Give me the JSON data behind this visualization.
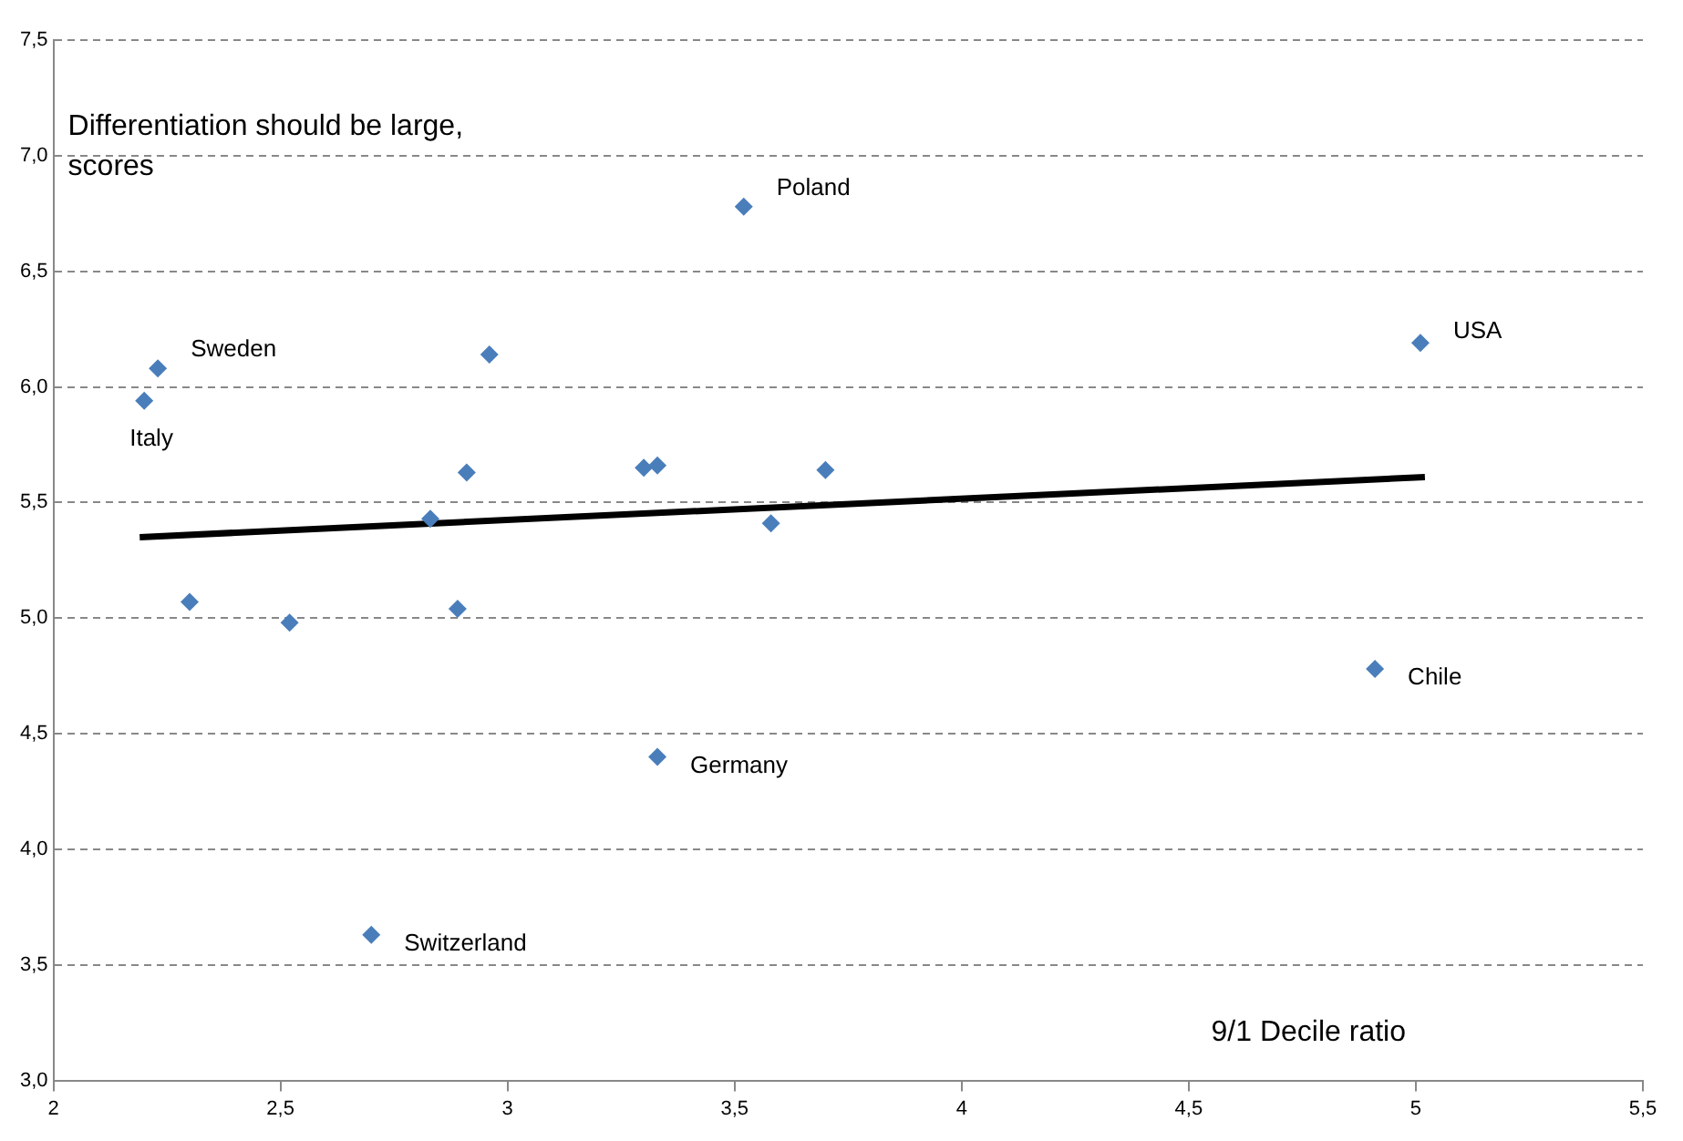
{
  "chart_data": {
    "type": "scatter",
    "xlabel": "9/1 Decile ratio",
    "ylabel": "Differentiation should be large, scores",
    "series": [
      {
        "color": "#4a7ebb",
        "marker": "diamond",
        "x": [
          2.23,
          2.2,
          2.96,
          2.91,
          2.83,
          2.89,
          2.3,
          2.52,
          3.3,
          3.33,
          3.58,
          3.7,
          3.33,
          2.7,
          3.52,
          5.01,
          4.91
        ],
        "values": [
          6.08,
          5.94,
          6.14,
          5.63,
          5.43,
          5.04,
          5.07,
          4.98,
          5.65,
          5.66,
          5.41,
          5.64,
          4.4,
          3.63,
          6.78,
          6.19,
          4.78
        ]
      },
      {
        "type": "line",
        "color": "#000000",
        "x": [
          2.19,
          5.02
        ],
        "values": [
          5.35,
          5.61
        ],
        "marker": "none"
      }
    ],
    "annotations": [
      {
        "text": "Sweden",
        "x": 2.23,
        "y": 6.08
      },
      {
        "text": "Italy",
        "x": 2.2,
        "y": 5.94
      },
      {
        "text": "Germany",
        "x": 3.33,
        "y": 4.4
      },
      {
        "text": "Switzerland",
        "x": 2.7,
        "y": 3.63
      },
      {
        "text": "Poland",
        "x": 3.52,
        "y": 6.78
      },
      {
        "text": "USA",
        "x": 5.01,
        "y": 6.19
      },
      {
        "text": "Chile",
        "x": 4.91,
        "y": 4.78
      }
    ],
    "xlim": [
      2,
      5.5
    ],
    "xticks": [
      2,
      {
        "value": 2.5,
        "label": "2,5"
      },
      3,
      {
        "value": 3.5,
        "label": "3,5"
      },
      4,
      {
        "value": 4.5,
        "label": "4,5"
      },
      5,
      {
        "value": 5.5,
        "label": "5,5"
      }
    ],
    "ylim": [
      3,
      7.5
    ],
    "yticks": [
      {
        "value": 3,
        "label": "3,0"
      },
      {
        "value": 3.5,
        "label": "3,5"
      },
      {
        "value": 4,
        "label": "4,0"
      },
      {
        "value": 4.5,
        "label": "4,5"
      },
      {
        "value": 5,
        "label": "5,0"
      },
      {
        "value": 5.5,
        "label": "5,5"
      },
      {
        "value": 6,
        "label": "6,0"
      },
      {
        "value": 6.5,
        "label": "6,5"
      },
      {
        "value": 7,
        "label": "7,0"
      },
      {
        "value": 7.5,
        "label": "7,5"
      }
    ],
    "grid": "y",
    "legend": false
  }
}
